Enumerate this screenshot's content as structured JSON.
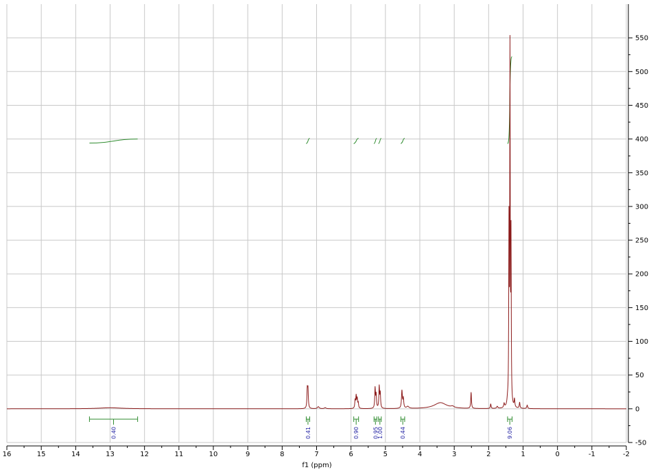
{
  "chart_data": {
    "type": "line",
    "title": "",
    "xlabel": "f1 (ppm)",
    "ylabel": "",
    "xlim": [
      16,
      -2
    ],
    "ylim": [
      -50,
      600
    ],
    "grid": true,
    "x_reversed": true,
    "xticks": [
      {
        "value": 16,
        "label": "16"
      },
      {
        "value": 15,
        "label": "15"
      },
      {
        "value": 14,
        "label": "14"
      },
      {
        "value": 13,
        "label": "13"
      },
      {
        "value": 12,
        "label": "12"
      },
      {
        "value": 11,
        "label": "11"
      },
      {
        "value": 10,
        "label": "10"
      },
      {
        "value": 9,
        "label": "9"
      },
      {
        "value": 8,
        "label": "8"
      },
      {
        "value": 7,
        "label": "7"
      },
      {
        "value": 6,
        "label": "6"
      },
      {
        "value": 5,
        "label": "5"
      },
      {
        "value": 4,
        "label": "4"
      },
      {
        "value": 3,
        "label": "3"
      },
      {
        "value": 2,
        "label": "2"
      },
      {
        "value": 1,
        "label": "1"
      },
      {
        "value": 0,
        "label": "0"
      },
      {
        "value": -1,
        "label": "-1"
      },
      {
        "value": -2,
        "label": "-2"
      }
    ],
    "yticks": [
      {
        "value": -50,
        "label": "-50"
      },
      {
        "value": 0,
        "label": "0"
      },
      {
        "value": 50,
        "label": "50"
      },
      {
        "value": 100,
        "label": "100"
      },
      {
        "value": 150,
        "label": "150"
      },
      {
        "value": 200,
        "label": "200"
      },
      {
        "value": 250,
        "label": "250"
      },
      {
        "value": 300,
        "label": "300"
      },
      {
        "value": 350,
        "label": "350"
      },
      {
        "value": 400,
        "label": "400"
      },
      {
        "value": 450,
        "label": "450"
      },
      {
        "value": 500,
        "label": "500"
      },
      {
        "value": 550,
        "label": "550"
      }
    ],
    "colors": {
      "spectrum": "#8b1a1a",
      "integral": "#2e8b2e",
      "integral_value": "#1a1aa0",
      "grid": "#c8c8c8",
      "axis": "#000000"
    },
    "peaks": [
      {
        "x": 13.0,
        "height": 1.5,
        "width": 0.4
      },
      {
        "x": 7.27,
        "height": 28,
        "width": 0.012
      },
      {
        "x": 7.25,
        "height": 26,
        "width": 0.012
      },
      {
        "x": 6.95,
        "height": 3,
        "width": 0.03
      },
      {
        "x": 6.75,
        "height": 1.5,
        "width": 0.03
      },
      {
        "x": 5.88,
        "height": 12,
        "width": 0.012
      },
      {
        "x": 5.85,
        "height": 18,
        "width": 0.012
      },
      {
        "x": 5.82,
        "height": 14,
        "width": 0.012
      },
      {
        "x": 5.79,
        "height": 8,
        "width": 0.012
      },
      {
        "x": 5.3,
        "height": 30,
        "width": 0.012
      },
      {
        "x": 5.27,
        "height": 20,
        "width": 0.012
      },
      {
        "x": 5.18,
        "height": 32,
        "width": 0.012
      },
      {
        "x": 5.15,
        "height": 22,
        "width": 0.012
      },
      {
        "x": 4.52,
        "height": 26,
        "width": 0.015
      },
      {
        "x": 4.48,
        "height": 14,
        "width": 0.015
      },
      {
        "x": 4.35,
        "height": 3,
        "width": 0.04
      },
      {
        "x": 3.4,
        "height": 9,
        "width": 0.22
      },
      {
        "x": 3.05,
        "height": 2,
        "width": 0.05
      },
      {
        "x": 2.51,
        "height": 24,
        "width": 0.012
      },
      {
        "x": 1.94,
        "height": 7,
        "width": 0.012
      },
      {
        "x": 1.75,
        "height": 3,
        "width": 0.02
      },
      {
        "x": 1.55,
        "height": 6,
        "width": 0.015
      },
      {
        "x": 1.45,
        "height": 8,
        "width": 0.02
      },
      {
        "x": 1.41,
        "height": 260,
        "width": 0.008
      },
      {
        "x": 1.38,
        "height": 520,
        "width": 0.008
      },
      {
        "x": 1.35,
        "height": 240,
        "width": 0.008
      },
      {
        "x": 1.25,
        "height": 12,
        "width": 0.012
      },
      {
        "x": 1.1,
        "height": 9,
        "width": 0.012
      },
      {
        "x": 0.88,
        "height": 5,
        "width": 0.015
      }
    ],
    "integrals": [
      {
        "from": 13.6,
        "to": 12.2,
        "value": "0.40"
      },
      {
        "from": 7.3,
        "to": 7.2,
        "value": "0.41"
      },
      {
        "from": 5.92,
        "to": 5.78,
        "value": "0.90"
      },
      {
        "from": 5.33,
        "to": 5.25,
        "value": "0.95"
      },
      {
        "from": 5.2,
        "to": 5.12,
        "value": "1.00"
      },
      {
        "from": 4.55,
        "to": 4.44,
        "value": "0.44"
      },
      {
        "from": 1.45,
        "to": 1.32,
        "value": "9.06"
      }
    ]
  }
}
